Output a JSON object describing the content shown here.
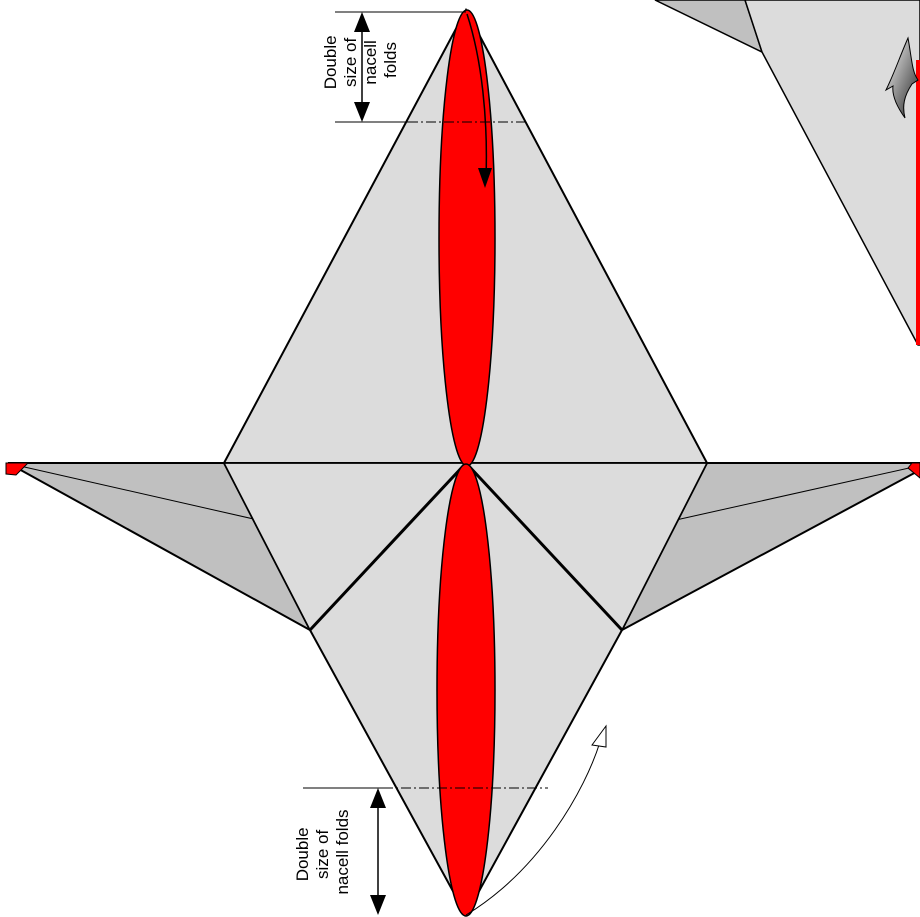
{
  "colors": {
    "paper_light": "#dcdcdc",
    "paper_dark": "#c0c0c0",
    "accent_red": "#ff0000",
    "line": "#000000"
  },
  "annotations": {
    "top_label": [
      "Double",
      "size of",
      "nacell",
      "folds"
    ],
    "bottom_label": [
      "Double",
      "size of",
      "nacell folds"
    ]
  }
}
